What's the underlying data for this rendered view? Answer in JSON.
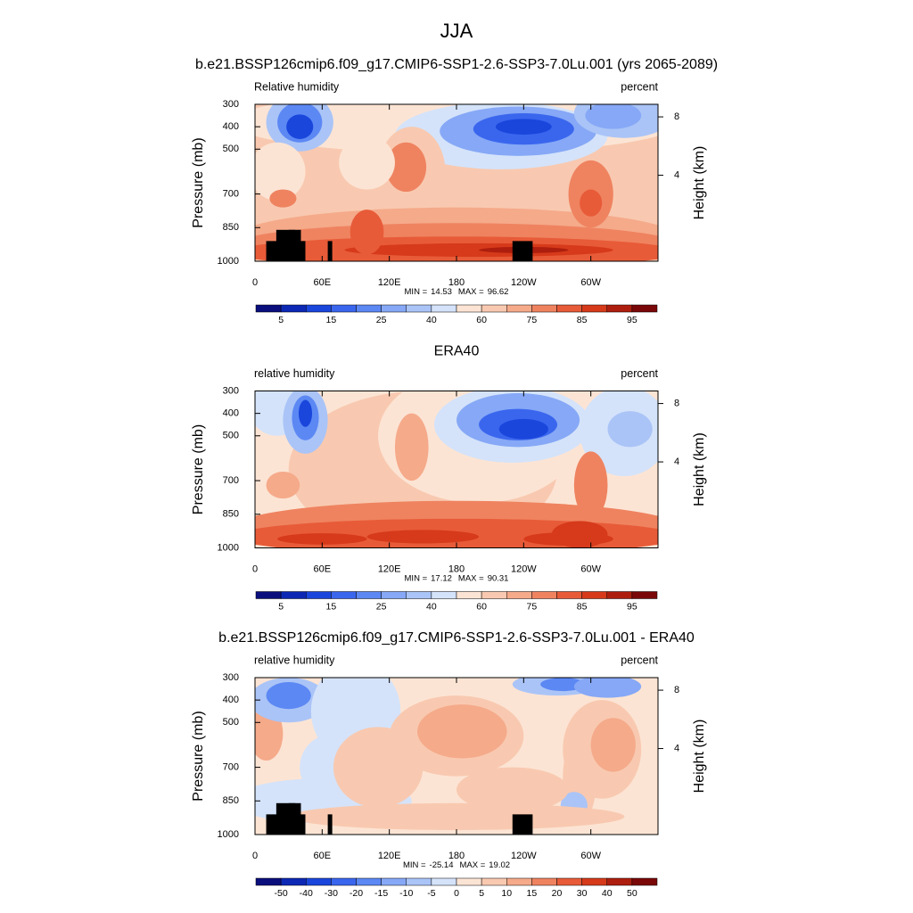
{
  "title": "JJA",
  "chart_data": [
    {
      "type": "contour",
      "title": "b.e21.BSSP126cmip6.f09_g17.CMIP6-SSP1-2.6-SSP3-7.0Lu.001 (yrs 2065-2089)",
      "left_label": "Relative humidity",
      "right_label": "percent",
      "ylabel": "Pressure (mb)",
      "y2label": "Height (km)",
      "xlim": [
        0,
        360
      ],
      "xticks": [
        0,
        {
          "value": 60,
          "label": "60E"
        },
        {
          "value": 120,
          "label": "120E"
        },
        180,
        {
          "value": 240,
          "label": "120W"
        },
        {
          "value": 300,
          "label": "60W"
        }
      ],
      "ylim": [
        1000,
        300
      ],
      "yticks": [
        300,
        400,
        500,
        700,
        850,
        1000
      ],
      "y2ticks": [
        4,
        8
      ],
      "min_label": "MIN =",
      "min": 14.53,
      "max_label": "MAX =",
      "max": 96.62,
      "colorbar": {
        "colors": [
          "#0a0f7d",
          "#0c28b4",
          "#1a46dc",
          "#3a66ee",
          "#5c88f4",
          "#86a8f6",
          "#aac4f7",
          "#d4e3fa",
          "#fce4d4",
          "#f8c9b0",
          "#f5aa8a",
          "#ef8360",
          "#e85b38",
          "#d63a1a",
          "#ad1e0e",
          "#7a0808"
        ],
        "ticks": [
          5,
          15,
          25,
          40,
          60,
          75,
          85,
          95
        ]
      }
    },
    {
      "type": "contour",
      "title": "ERA40",
      "left_label": "relative humidity",
      "right_label": "percent",
      "ylabel": "Pressure (mb)",
      "y2label": "Height (km)",
      "xlim": [
        0,
        360
      ],
      "xticks": [
        0,
        {
          "value": 60,
          "label": "60E"
        },
        {
          "value": 120,
          "label": "120E"
        },
        180,
        {
          "value": 240,
          "label": "120W"
        },
        {
          "value": 300,
          "label": "60W"
        }
      ],
      "ylim": [
        1000,
        300
      ],
      "yticks": [
        300,
        400,
        500,
        700,
        850,
        1000
      ],
      "y2ticks": [
        4,
        8
      ],
      "min_label": "MIN =",
      "min": 17.12,
      "max_label": "MAX =",
      "max": 90.31,
      "colorbar": {
        "colors": [
          "#0a0f7d",
          "#0c28b4",
          "#1a46dc",
          "#3a66ee",
          "#5c88f4",
          "#86a8f6",
          "#aac4f7",
          "#d4e3fa",
          "#fce4d4",
          "#f8c9b0",
          "#f5aa8a",
          "#ef8360",
          "#e85b38",
          "#d63a1a",
          "#ad1e0e",
          "#7a0808"
        ],
        "ticks": [
          5,
          15,
          25,
          40,
          60,
          75,
          85,
          95
        ]
      }
    },
    {
      "type": "contour",
      "title": "b.e21.BSSP126cmip6.f09_g17.CMIP6-SSP1-2.6-SSP3-7.0Lu.001 - ERA40",
      "left_label": "relative humidity",
      "right_label": "percent",
      "ylabel": "Pressure (mb)",
      "y2label": "Height (km)",
      "xlim": [
        0,
        360
      ],
      "xticks": [
        0,
        {
          "value": 60,
          "label": "60E"
        },
        {
          "value": 120,
          "label": "120E"
        },
        180,
        {
          "value": 240,
          "label": "120W"
        },
        {
          "value": 300,
          "label": "60W"
        }
      ],
      "ylim": [
        1000,
        300
      ],
      "yticks": [
        300,
        400,
        500,
        700,
        850,
        1000
      ],
      "y2ticks": [
        4,
        8
      ],
      "min_label": "MIN =",
      "min": -25.14,
      "max_label": "MAX =",
      "max": 19.02,
      "colorbar": {
        "colors": [
          "#0a0f7d",
          "#0c28b4",
          "#1a46dc",
          "#3a66ee",
          "#5c88f4",
          "#86a8f6",
          "#aac4f7",
          "#d4e3fa",
          "#fce4d4",
          "#f8c9b0",
          "#f5aa8a",
          "#ef8360",
          "#e85b38",
          "#d63a1a",
          "#ad1e0e",
          "#7a0808"
        ],
        "ticks": [
          -50,
          -40,
          -30,
          -20,
          -15,
          -10,
          -5,
          0,
          5,
          10,
          15,
          20,
          30,
          40,
          50
        ]
      }
    }
  ]
}
